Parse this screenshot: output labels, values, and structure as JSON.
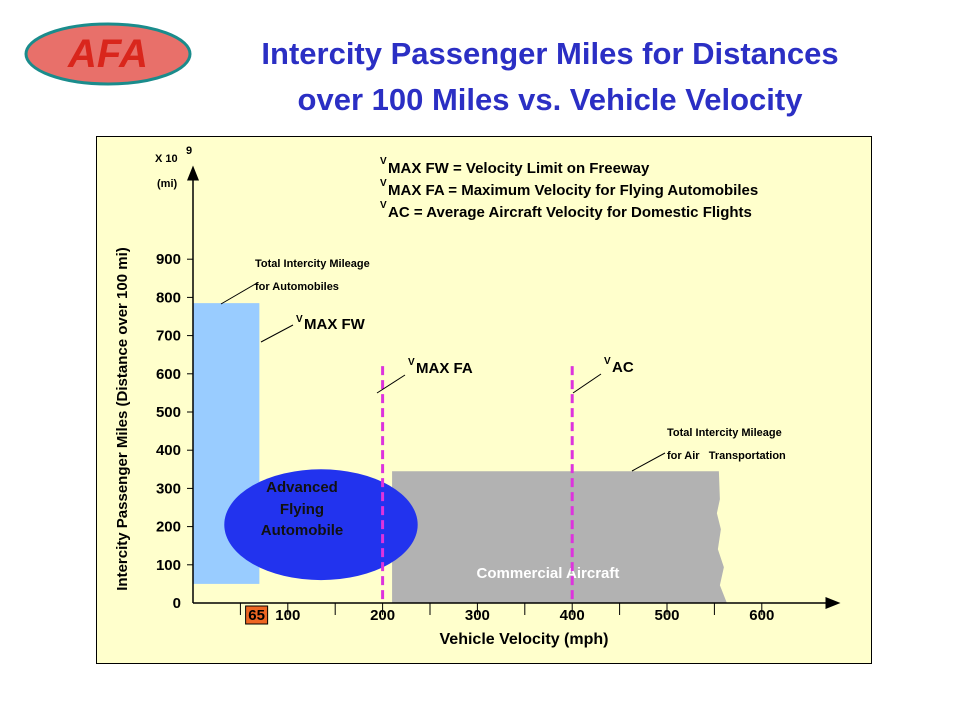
{
  "logo": {
    "text": "AFA",
    "fill": "#e8706a",
    "stroke": "#1a8c8c",
    "text_color": "#d9261c"
  },
  "title": {
    "line1": "Intercity Passenger Miles for Distances",
    "line2": "over 100 Miles vs. Vehicle Velocity",
    "color": "#2b2fc4"
  },
  "chart_data": {
    "type": "area",
    "ylabel": "Intercity Passenger Miles (Distance over 100 mi)",
    "xlabel": "Vehicle Velocity (mph)",
    "y_unit_multiplier": "X 10",
    "y_unit_exponent": "9",
    "y_unit": "(mi)",
    "ylim": [
      0,
      1000
    ],
    "xlim": [
      0,
      650
    ],
    "yticks": [
      0,
      100,
      200,
      300,
      400,
      500,
      600,
      700,
      800,
      900
    ],
    "xticks": [
      100,
      200,
      300,
      400,
      500,
      600
    ],
    "x_highlight_tick": {
      "value": 65,
      "label": "65",
      "color": "#ee6622"
    },
    "grid": false,
    "regions": [
      {
        "name": "Total Intercity Mileage for Automobiles",
        "x0": 0,
        "x1": 70,
        "y0": 50,
        "y1": 785,
        "color": "#99ccff"
      },
      {
        "name": "Commercial Aircraft",
        "x0": 210,
        "x1": 560,
        "y0": 0,
        "y1": 345,
        "color": "#b2b2b2"
      }
    ],
    "ellipse": {
      "label": [
        "Advanced",
        "Flying",
        "Automobile"
      ],
      "cx": 135,
      "cy": 205,
      "rx": 102,
      "ry": 145,
      "color": "#2233ee",
      "text_color": "#111111"
    },
    "commercial_label": "Commercial Aircraft",
    "vlines": [
      {
        "x": 200,
        "y_top": 620,
        "label_sub": "V",
        "label": "MAX FA",
        "color": "#dd33dd"
      },
      {
        "x": 400,
        "y_top": 620,
        "label_sub": "V",
        "label": "AC",
        "color": "#dd33dd"
      }
    ],
    "annotations": [
      {
        "id": "auto_total",
        "lines": [
          "Total Intercity Mileage",
          "for Automobiles"
        ]
      },
      {
        "id": "air_total",
        "lines": [
          "Total Intercity Mileage",
          "for Air   Transportation"
        ]
      },
      {
        "id": "vmax_fw",
        "sub": "V",
        "text": "MAX FW"
      }
    ],
    "legend": [
      {
        "sub": "V",
        "text": "MAX FW = Velocity Limit on Freeway"
      },
      {
        "sub": "V",
        "text": "MAX FA = Maximum Velocity for Flying Automobiles"
      },
      {
        "sub": "V",
        "text": "AC = Average Aircraft Velocity for Domestic Flights"
      }
    ],
    "legend_placement": "top-right"
  }
}
